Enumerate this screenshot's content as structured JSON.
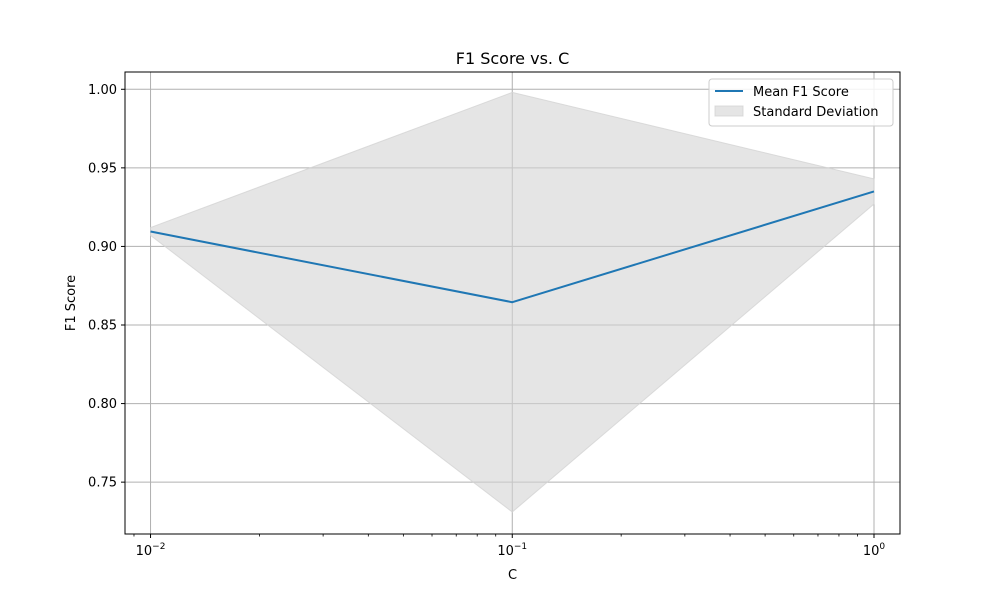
{
  "chart_data": {
    "type": "line",
    "title": "F1 Score vs. C",
    "xlabel": "C",
    "ylabel": "F1 Score",
    "xscale": "log",
    "xlim": [
      0.0085,
      1.18
    ],
    "ylim": [
      0.717,
      1.011
    ],
    "grid": true,
    "x": [
      0.01,
      0.1,
      1
    ],
    "x_ticks": [
      {
        "value": 0.01,
        "base": "10",
        "exp": "−2"
      },
      {
        "value": 0.1,
        "base": "10",
        "exp": "−1"
      },
      {
        "value": 1,
        "base": "10",
        "exp": "0"
      }
    ],
    "y_ticks": [
      {
        "value": 0.75,
        "label": "0.75"
      },
      {
        "value": 0.8,
        "label": "0.80"
      },
      {
        "value": 0.85,
        "label": "0.85"
      },
      {
        "value": 0.9,
        "label": "0.90"
      },
      {
        "value": 0.95,
        "label": "0.95"
      },
      {
        "value": 1.0,
        "label": "1.00"
      }
    ],
    "series": [
      {
        "name": "Mean F1 Score",
        "kind": "line",
        "color": "#1f77b4",
        "values": [
          0.9095,
          0.8645,
          0.935
        ]
      },
      {
        "name": "Standard Deviation",
        "kind": "band",
        "color": "#d3d3d3",
        "lower": [
          0.907,
          0.731,
          0.927
        ],
        "upper": [
          0.912,
          0.998,
          0.943
        ]
      }
    ],
    "legend_position": "upper-right"
  }
}
